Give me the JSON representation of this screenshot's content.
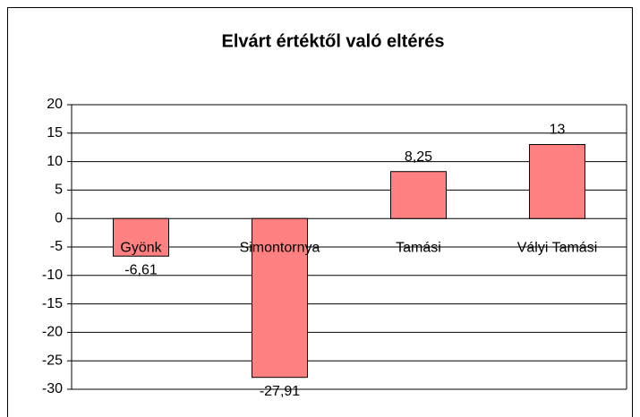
{
  "chart_data": {
    "type": "bar",
    "title": "Elvárt értéktől való eltérés",
    "categories": [
      "Gyönk",
      "Simontornya",
      "Tamási",
      "Vályi Tamási"
    ],
    "values": [
      -6.61,
      -27.91,
      8.25,
      13
    ],
    "value_labels": [
      "-6,61",
      "-27,91",
      "8,25",
      "13"
    ],
    "color": "#ff8080",
    "ylim": [
      -30,
      20
    ],
    "yticks": [
      -30,
      -25,
      -20,
      -15,
      -10,
      -5,
      0,
      5,
      10,
      15,
      20
    ],
    "grid": true
  }
}
